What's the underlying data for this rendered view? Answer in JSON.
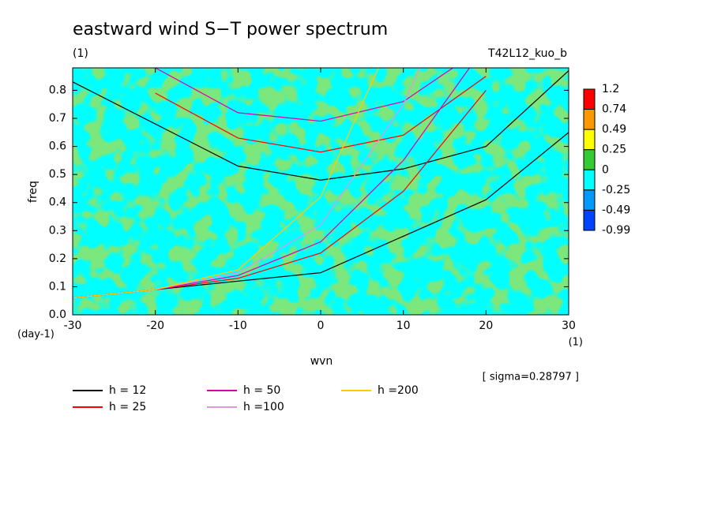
{
  "chart_data": {
    "type": "contour",
    "title": "eastward wind S−T power spectrum",
    "subtitle": "(1)",
    "case_label": "T42L12_kuo_b",
    "xlabel": "wvn",
    "ylabel": "freq",
    "y_units": "(day-1)",
    "x_units": "(1)",
    "note": "[ sigma=0.28797 ]",
    "xlim": [
      -30,
      30
    ],
    "xticks": [
      -30,
      -20,
      -10,
      0,
      10,
      20,
      30
    ],
    "ylim": [
      0,
      0.88
    ],
    "yticks": [
      {
        "value": 0,
        "label": "0.0"
      },
      0.1,
      0.2,
      0.3,
      0.4,
      0.5,
      0.6,
      0.7,
      0.8
    ],
    "colorbar": {
      "levels": [
        1.2,
        0.74,
        0.49,
        0.25,
        0,
        -0.25,
        -0.49,
        -0.99
      ],
      "colors": [
        "#ff0000",
        "#ff9900",
        "#ffff00",
        "#33cc33",
        "#00ffff",
        "#0099ff",
        "#0044ff"
      ]
    },
    "series": [
      {
        "name": "h = 12",
        "color": "#000000",
        "branches": [
          {
            "x": [
              -30,
              -20,
              -10,
              0,
              10,
              20,
              30
            ],
            "values": [
              0.06,
              0.09,
              0.12,
              0.15,
              0.28,
              0.41,
              0.65
            ]
          },
          {
            "x": [
              -30,
              -20,
              -10,
              0,
              10,
              20,
              30
            ],
            "values": [
              0.83,
              0.68,
              0.53,
              0.48,
              0.52,
              0.6,
              0.87
            ]
          }
        ]
      },
      {
        "name": "h = 25",
        "color": "#ff0000",
        "branches": [
          {
            "x": [
              -30,
              -20,
              -10,
              0,
              10,
              20
            ],
            "values": [
              0.06,
              0.09,
              0.13,
              0.22,
              0.44,
              0.8
            ]
          },
          {
            "x": [
              -20,
              -10,
              0,
              10,
              20
            ],
            "values": [
              0.79,
              0.63,
              0.58,
              0.64,
              0.85
            ]
          }
        ]
      },
      {
        "name": "h = 50",
        "color": "#dd00aa",
        "branches": [
          {
            "x": [
              -30,
              -20,
              -10,
              0,
              10,
              18
            ],
            "values": [
              0.06,
              0.09,
              0.14,
              0.26,
              0.55,
              0.88
            ]
          },
          {
            "x": [
              -20,
              -10,
              0,
              10,
              16
            ],
            "values": [
              0.88,
              0.72,
              0.69,
              0.76,
              0.88
            ]
          }
        ]
      },
      {
        "name": "h =100",
        "color": "#dd99dd",
        "branches": [
          {
            "x": [
              -30,
              -20,
              -10,
              0,
              10,
              12
            ],
            "values": [
              0.06,
              0.09,
              0.15,
              0.32,
              0.75,
              0.88
            ]
          }
        ]
      },
      {
        "name": "h =200",
        "color": "#ffcc00",
        "branches": [
          {
            "x": [
              -30,
              -20,
              -10,
              0,
              5,
              7
            ],
            "values": [
              0.06,
              0.09,
              0.16,
              0.42,
              0.75,
              0.88
            ]
          }
        ]
      }
    ]
  }
}
